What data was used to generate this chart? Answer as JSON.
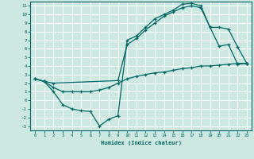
{
  "title": "",
  "xlabel": "Humidex (Indice chaleur)",
  "bg_color": "#cce8e0",
  "line_color": "#006666",
  "grid_color": "#ffffff",
  "xlim": [
    -0.5,
    23.5
  ],
  "ylim": [
    -3.5,
    11.5
  ],
  "xticks": [
    0,
    1,
    2,
    3,
    4,
    5,
    6,
    7,
    8,
    9,
    10,
    11,
    12,
    13,
    14,
    15,
    16,
    17,
    18,
    19,
    20,
    21,
    22,
    23
  ],
  "yticks": [
    -3,
    -2,
    -1,
    0,
    1,
    2,
    3,
    4,
    5,
    6,
    7,
    8,
    9,
    10,
    11
  ],
  "curve1_x": [
    0,
    1,
    2,
    3,
    4,
    5,
    6,
    7,
    8,
    9,
    10,
    11,
    12,
    13,
    14,
    15,
    16,
    17,
    18,
    19,
    20,
    21,
    22,
    23
  ],
  "curve1_y": [
    2.5,
    2.2,
    1.0,
    -0.5,
    -1.0,
    -1.2,
    -1.3,
    -3.0,
    -2.2,
    -1.8,
    7.0,
    7.5,
    8.5,
    9.5,
    10.0,
    10.5,
    11.2,
    11.3,
    11.0,
    8.5,
    6.3,
    6.5,
    4.2,
    4.3
  ],
  "curve2_x": [
    0,
    1,
    2,
    9,
    10,
    11,
    12,
    13,
    14,
    15,
    16,
    17,
    18,
    19,
    20,
    21,
    22,
    23
  ],
  "curve2_y": [
    2.5,
    2.2,
    2.0,
    2.3,
    6.5,
    7.2,
    8.2,
    9.0,
    9.8,
    10.3,
    10.8,
    11.0,
    10.8,
    8.5,
    8.5,
    8.3,
    6.2,
    4.3
  ],
  "curve3_x": [
    0,
    1,
    2,
    3,
    4,
    5,
    6,
    7,
    8,
    9,
    10,
    11,
    12,
    13,
    14,
    15,
    16,
    17,
    18,
    19,
    20,
    21,
    22,
    23
  ],
  "curve3_y": [
    2.5,
    2.2,
    1.5,
    1.0,
    1.0,
    1.0,
    1.0,
    1.2,
    1.5,
    2.0,
    2.5,
    2.8,
    3.0,
    3.2,
    3.3,
    3.5,
    3.7,
    3.8,
    4.0,
    4.0,
    4.1,
    4.2,
    4.3,
    4.3
  ]
}
